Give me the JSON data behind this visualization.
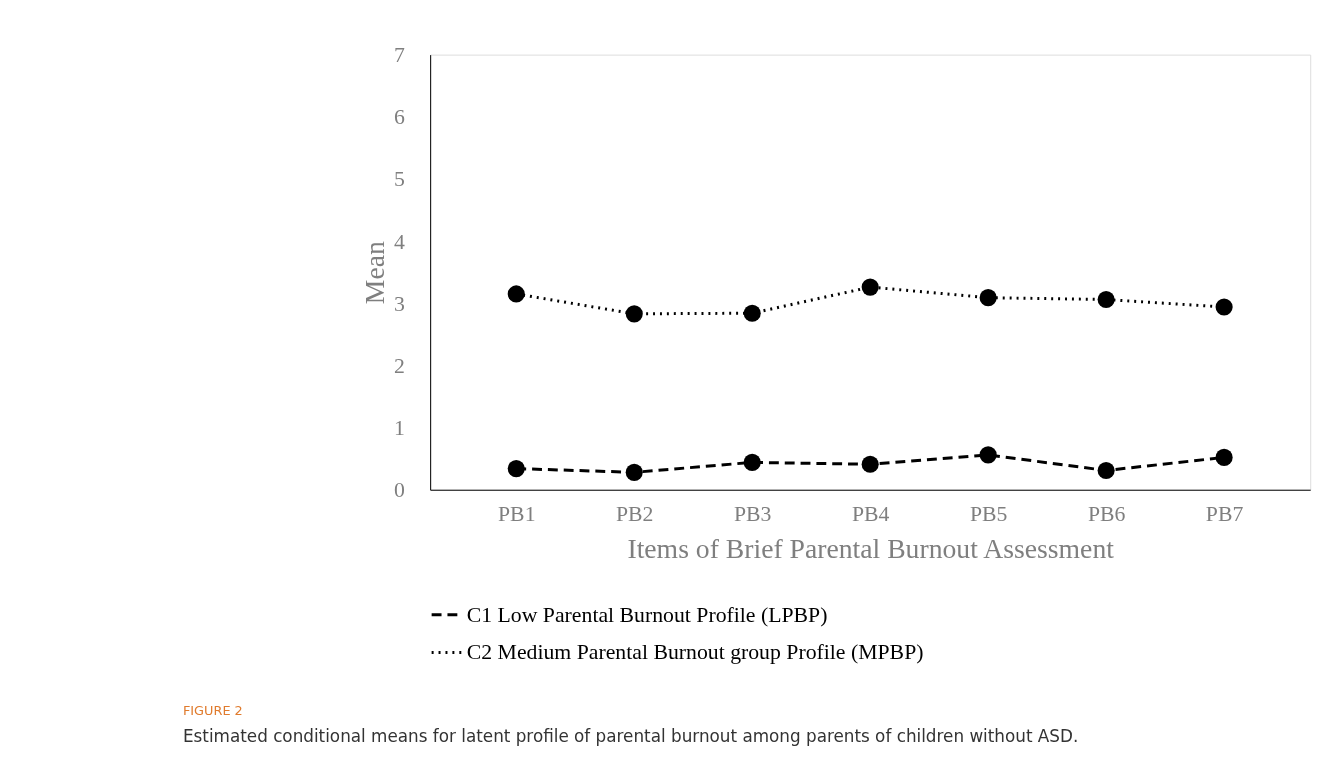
{
  "chart_data": {
    "type": "line",
    "xlabel": "Items of  Brief Parental Burnout Assessment",
    "ylabel": "Mean",
    "categories": [
      "PB1",
      "PB2",
      "PB3",
      "PB4",
      "PB5",
      "PB6",
      "PB7"
    ],
    "series": [
      {
        "name": "C1 Low Parental Burnout Profile (LPBP)",
        "color": "#000000",
        "line_style": "dashed",
        "values": [
          0.34,
          0.28,
          0.44,
          0.41,
          0.56,
          0.31,
          0.52
        ]
      },
      {
        "name": "C2 Medium Parental Burnout group Profile (MPBP)",
        "color": "#000000",
        "line_style": "dotted",
        "values": [
          3.15,
          2.83,
          2.84,
          3.26,
          3.09,
          3.06,
          2.94
        ]
      }
    ],
    "marker": "circle",
    "ylim": [
      0,
      7
    ],
    "yticks": [
      0,
      1,
      2,
      3,
      4,
      5,
      6,
      7
    ],
    "grid": false,
    "legend": "bottom",
    "annotations": [
      "FIGURE 2",
      "Estimated conditional means for latent profile of parental burnout among parents of children without ASD."
    ]
  }
}
